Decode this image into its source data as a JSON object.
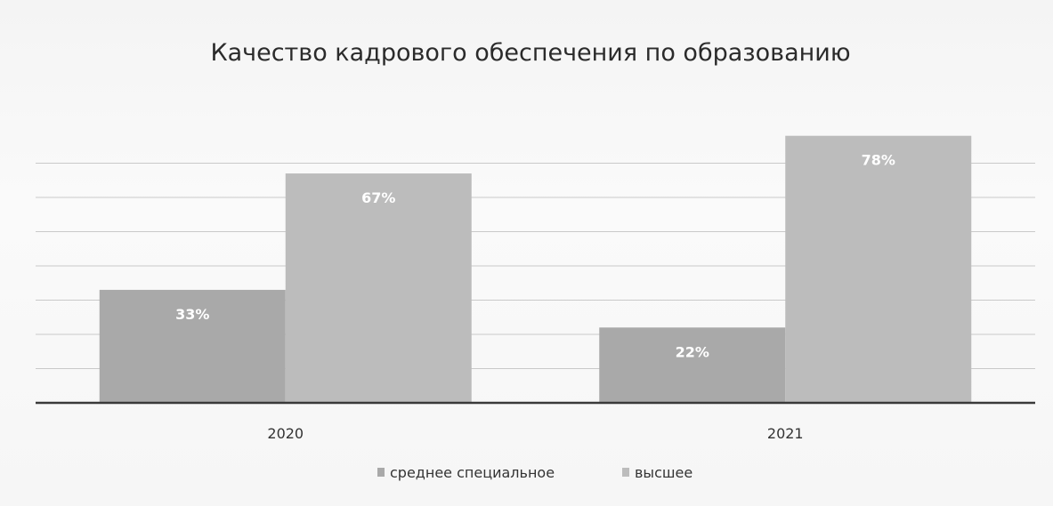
{
  "chart_data": {
    "type": "bar",
    "title": "Качество кадрового обеспечения по образованию",
    "categories": [
      "2020",
      "2021"
    ],
    "series": [
      {
        "name": "среднее специальное",
        "values": [
          33,
          22
        ],
        "labels": [
          "33%",
          "22%"
        ],
        "color": "#a9a9a9"
      },
      {
        "name": "высшее",
        "values": [
          67,
          78
        ],
        "labels": [
          "67%",
          "78%"
        ],
        "color": "#bcbcbc"
      }
    ],
    "xlabel": "",
    "ylabel": "",
    "ylim": [
      0,
      80
    ],
    "grid": true,
    "legend_position": "bottom"
  }
}
